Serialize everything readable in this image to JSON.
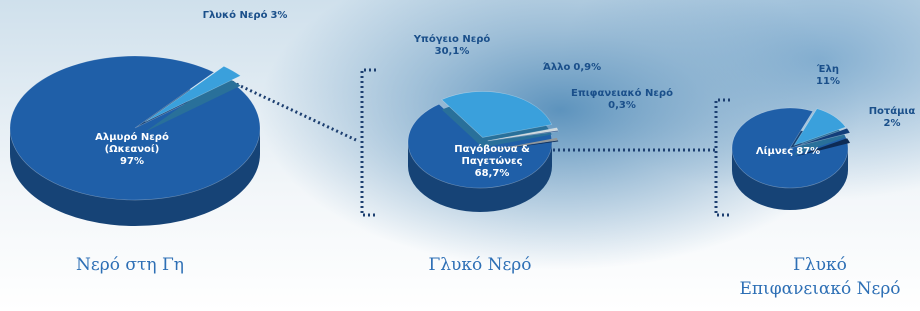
{
  "chart_data": [
    {
      "type": "pie",
      "title": "Νερό στη Γη",
      "categories": [
        "Αλμυρό Νερό (Ωκεανοί)",
        "Γλυκό Νερό"
      ],
      "values": [
        97,
        3
      ],
      "value_labels": [
        "97%",
        "3%"
      ],
      "colors": [
        "#1f5fa8",
        "#3aa0dc"
      ]
    },
    {
      "type": "pie",
      "title": "Γλυκό Νερό",
      "categories": [
        "Παγόβουνα & Παγετώνες",
        "Υπόγειο Νερό",
        "Άλλο",
        "Επιφανειακό Νερό"
      ],
      "values": [
        68.7,
        30.1,
        0.9,
        0.3
      ],
      "value_labels": [
        "68,7%",
        "30,1%",
        "0,9%",
        "0,3%"
      ],
      "colors": [
        "#1f5fa8",
        "#3aa0dc",
        "#cfd8dc",
        "#123e7a"
      ]
    },
    {
      "type": "pie",
      "title": "Γλυκό Επιφανειακό Νερό",
      "categories": [
        "Λίμνες",
        "Έλη",
        "Ποτάμια"
      ],
      "values": [
        87,
        11,
        2
      ],
      "value_labels": [
        "87%",
        "11%",
        "2%"
      ],
      "colors": [
        "#1f5fa8",
        "#3aa0dc",
        "#123e7a"
      ]
    }
  ]
}
